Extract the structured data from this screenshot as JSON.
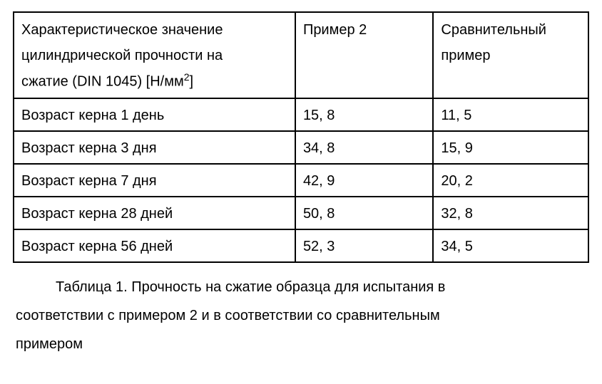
{
  "table": {
    "header": {
      "col0_line1": "Характеристическое значение",
      "col0_line2": "цилиндрической прочности на",
      "col0_line3_a": "сжатие (DIN 1045) [Н/мм",
      "col0_line3_sup": "2",
      "col0_line3_b": "]",
      "col1": "Пример 2",
      "col2_line1": "Сравнительный",
      "col2_line2": "пример"
    },
    "rows": [
      {
        "label": "Возраст керна 1 день",
        "v1": "15, 8",
        "v2": "11, 5"
      },
      {
        "label": "Возраст керна 3 дня",
        "v1": "34, 8",
        "v2": "15, 9"
      },
      {
        "label": "Возраст керна 7 дня",
        "v1": "42, 9",
        "v2": "20, 2"
      },
      {
        "label": "Возраст керна 28 дней",
        "v1": "50, 8",
        "v2": "32, 8"
      },
      {
        "label": "Возраст керна 56 дней",
        "v1": "52, 3",
        "v2": "34, 5"
      }
    ]
  },
  "caption": {
    "line1": "Таблица 1. Прочность на сжатие образца для испытания в",
    "line2": "соответствии с примером 2 и в соответствии со сравнительным",
    "line3": "примером"
  }
}
